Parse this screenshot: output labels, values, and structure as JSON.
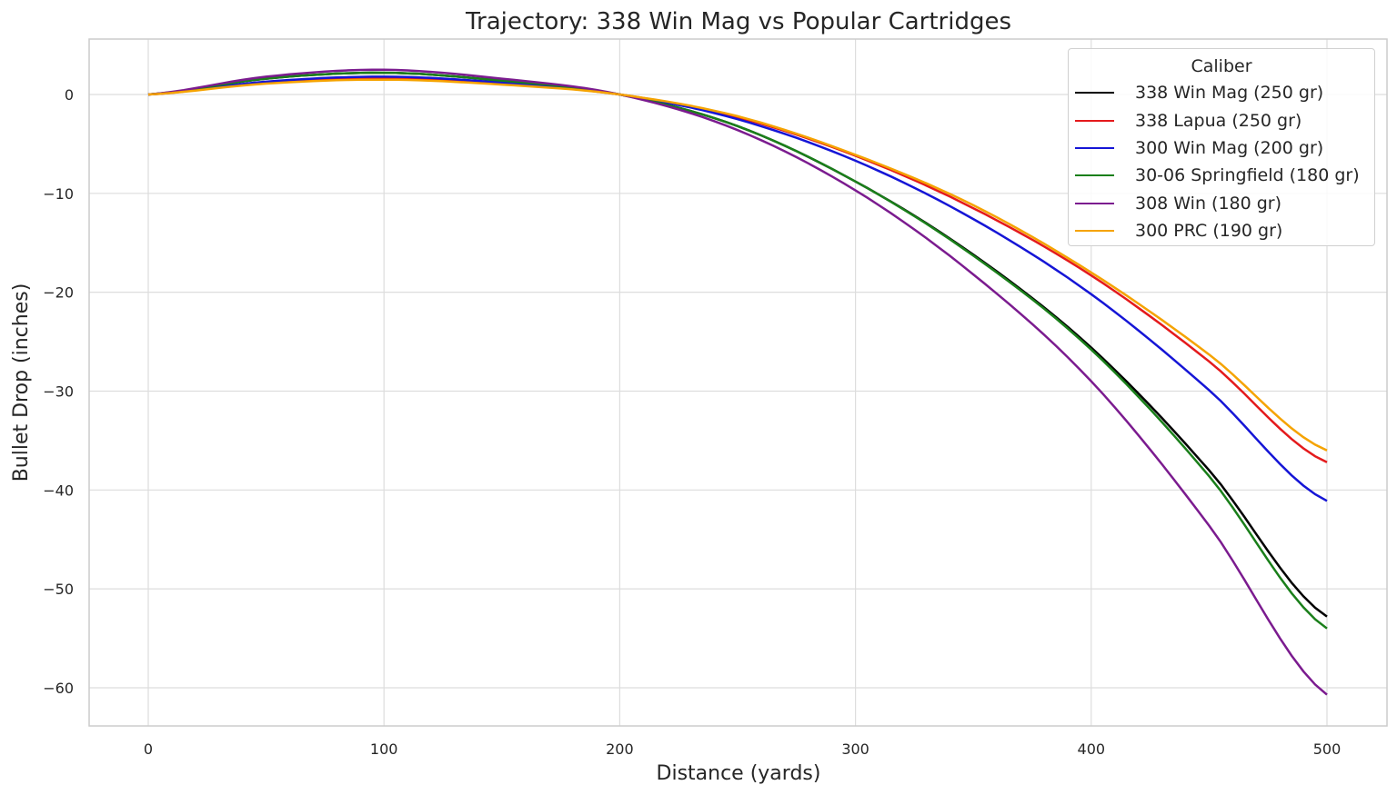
{
  "chart_data": {
    "type": "line",
    "title": "Trajectory: 338 Win Mag vs Popular Cartridges",
    "xlabel": "Distance (yards)",
    "ylabel": "Bullet Drop (inches)",
    "xlim": [
      -25,
      525
    ],
    "ylim": [
      -64,
      5.5
    ],
    "xticks": [
      0,
      100,
      200,
      300,
      400,
      500
    ],
    "yticks": [
      0,
      -10,
      -20,
      -30,
      -40,
      -50,
      -60
    ],
    "grid": true,
    "legend": {
      "title": "Caliber",
      "position": "upper right"
    },
    "x": [
      0,
      50,
      100,
      150,
      200,
      250,
      300,
      350,
      400,
      450,
      500
    ],
    "series": [
      {
        "name": "338 Win Mag (250 gr)",
        "color": "#000000",
        "values": [
          0,
          1.6,
          2.2,
          1.4,
          0,
          -3.2,
          -8.8,
          -16.2,
          -25.6,
          -38.0,
          -52.8
        ]
      },
      {
        "name": "338 Lapua (250 gr)",
        "color": "#e41a1c",
        "values": [
          0,
          1.2,
          1.6,
          1.1,
          0,
          -2.3,
          -6.2,
          -11.5,
          -18.3,
          -27.0,
          -37.2
        ]
      },
      {
        "name": "300 Win Mag (200 gr)",
        "color": "#1515d6",
        "values": [
          0,
          1.3,
          1.8,
          1.2,
          0,
          -2.5,
          -6.7,
          -12.6,
          -20.2,
          -29.9,
          -41.1
        ]
      },
      {
        "name": "30-06 Springfield (180 gr)",
        "color": "#1a7f1a",
        "values": [
          0,
          1.6,
          2.2,
          1.4,
          0,
          -3.2,
          -8.8,
          -16.3,
          -25.8,
          -38.6,
          -54.0
        ]
      },
      {
        "name": "308 Win (180 gr)",
        "color": "#7b1b8f",
        "values": [
          0,
          1.8,
          2.5,
          1.6,
          0,
          -3.6,
          -9.7,
          -18.2,
          -29.0,
          -43.6,
          -60.7
        ]
      },
      {
        "name": "300 PRC (190 gr)",
        "color": "#f5a300",
        "values": [
          0,
          1.1,
          1.5,
          1.0,
          0,
          -2.2,
          -6.1,
          -11.2,
          -18.0,
          -26.3,
          -36.0
        ]
      }
    ]
  }
}
